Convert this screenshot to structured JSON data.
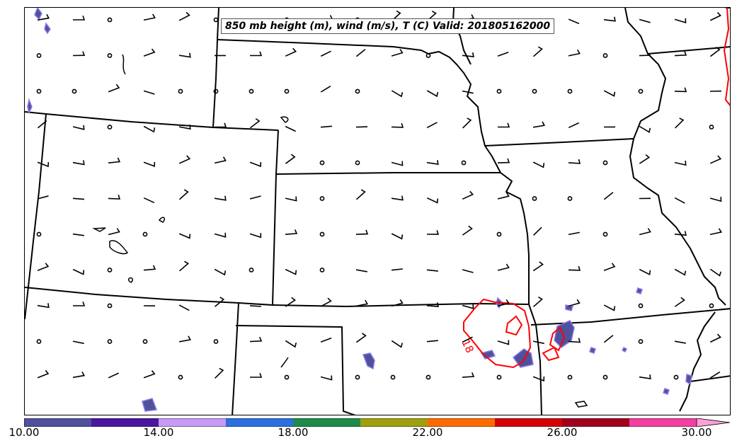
{
  "title": "850 mb height (m), wind (m/s), T (C) Valid: 201805162000",
  "contour_label": "18",
  "colorbar": {
    "ticks": [
      "10.00",
      "14.00",
      "18.00",
      "22.00",
      "26.00",
      "30.00"
    ],
    "colors": [
      "#4f519c",
      "#4a17a1",
      "#c99af5",
      "#2c6fe0",
      "#1e8b4a",
      "#a0a00f",
      "#ff6b00",
      "#d40000",
      "#a0001e",
      "#f23fa0",
      "#ffa0d6"
    ]
  },
  "colors": {
    "borders": "#000000",
    "temperature_contour": "#ff0000",
    "precip_fill": "#4f519c",
    "precip_edge": "#8b7be8"
  },
  "icons": [
    "wind-barb-icon",
    "calm-wind-circle-icon"
  ]
}
